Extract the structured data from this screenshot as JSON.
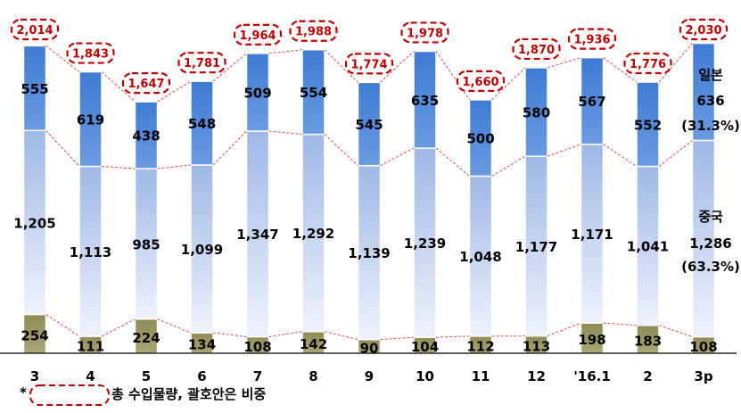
{
  "chart_data": {
    "type": "bar",
    "stacked": true,
    "categories": [
      "3",
      "4",
      "5",
      "6",
      "7",
      "8",
      "9",
      "10",
      "11",
      "12",
      "'16.1",
      "2",
      "3p"
    ],
    "series": [
      {
        "name": "",
        "color": "#8d8a55",
        "values": [
          254,
          111,
          224,
          134,
          108,
          142,
          90,
          104,
          112,
          113,
          198,
          183,
          108
        ]
      },
      {
        "name": "중국",
        "color": "#b5c8ec",
        "values": [
          1205,
          1113,
          985,
          1099,
          1347,
          1292,
          1139,
          1239,
          1048,
          1177,
          1171,
          1041,
          1286
        ]
      },
      {
        "name": "일본",
        "color": "#4a86d8",
        "values": [
          555,
          619,
          438,
          548,
          509,
          554,
          545,
          635,
          500,
          580,
          567,
          552,
          636
        ]
      }
    ],
    "value_labels": [
      [
        "254",
        "111",
        "224",
        "134",
        "108",
        "142",
        "90",
        "104",
        "112",
        "113",
        "198",
        "183",
        "108"
      ],
      [
        "1,205",
        "1,113",
        "985",
        "1,099",
        "1,347",
        "1,292",
        "1,139",
        "1,239",
        "1,048",
        "1,177",
        "1,171",
        "1,041",
        ""
      ],
      [
        "555",
        "619",
        "438",
        "548",
        "509",
        "554",
        "545",
        "635",
        "500",
        "580",
        "567",
        "552",
        ""
      ]
    ],
    "totals": [
      2014,
      1843,
      1647,
      1781,
      1964,
      1988,
      1774,
      1978,
      1660,
      1870,
      1936,
      1776,
      2030
    ],
    "total_labels": [
      "2,014",
      "1,843",
      "1,647",
      "1,781",
      "1,964",
      "1,988",
      "1,774",
      "1,978",
      "1,660",
      "1,870",
      "1,936",
      "1,776",
      "2,030"
    ],
    "ylim": [
      0,
      2080
    ],
    "grid": false,
    "legend": "none",
    "right_labels": {
      "japan_name": "일본",
      "japan_value": "636",
      "japan_share": "(31.3%)",
      "china_name": "중국",
      "china_value": "1,286",
      "china_share": "(63.3%)"
    },
    "footnote": {
      "asterisk": "*",
      "text": "총 수입물량, 괄호안은 비중"
    }
  }
}
